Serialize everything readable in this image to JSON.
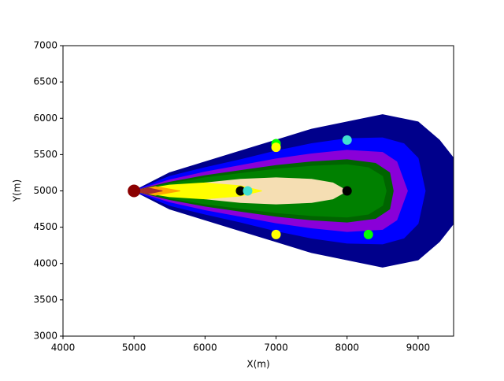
{
  "chart_data": {
    "type": "contour",
    "xlabel": "X(m)",
    "ylabel": "Y(m)",
    "xlim": [
      4000,
      9500
    ],
    "ylim": [
      3000,
      7000
    ],
    "xticks": [
      4000,
      5000,
      6000,
      7000,
      8000,
      9000
    ],
    "yticks": [
      3000,
      3500,
      4000,
      4500,
      5000,
      5500,
      6000,
      6500,
      7000
    ],
    "contours": [
      {
        "color": "#00008b",
        "x": [
          5000,
          5500,
          6000,
          6500,
          7000,
          7500,
          8000,
          8500,
          9000,
          9300,
          9500
        ],
        "upper": [
          5000,
          5250,
          5400,
          5550,
          5700,
          5850,
          5950,
          6050,
          5950,
          5700,
          5450
        ],
        "lower": [
          5000,
          4750,
          4600,
          4450,
          4300,
          4150,
          4050,
          3950,
          4050,
          4300,
          4550
        ]
      },
      {
        "color": "#0000ff",
        "x": [
          5000,
          5500,
          6000,
          6500,
          7000,
          7500,
          8000,
          8500,
          8800,
          9000,
          9100
        ],
        "upper": [
          5000,
          5200,
          5320,
          5430,
          5550,
          5650,
          5720,
          5730,
          5650,
          5450,
          5000
        ],
        "lower": [
          5000,
          4800,
          4680,
          4570,
          4450,
          4350,
          4280,
          4270,
          4350,
          4550,
          5000
        ]
      },
      {
        "color": "#8a00d8",
        "x": [
          5000,
          5500,
          6000,
          6500,
          7000,
          7500,
          8000,
          8500,
          8700,
          8850
        ],
        "upper": [
          5000,
          5150,
          5260,
          5350,
          5440,
          5510,
          5560,
          5530,
          5400,
          5000
        ],
        "lower": [
          5000,
          4850,
          4740,
          4650,
          4560,
          4490,
          4440,
          4470,
          4600,
          5000
        ]
      },
      {
        "color": "#006400",
        "x": [
          5000,
          5500,
          6000,
          6500,
          7000,
          7500,
          8000,
          8400,
          8600,
          8650
        ],
        "upper": [
          5000,
          5120,
          5210,
          5280,
          5350,
          5400,
          5430,
          5380,
          5250,
          5000
        ],
        "lower": [
          5000,
          4880,
          4790,
          4720,
          4650,
          4600,
          4570,
          4620,
          4750,
          5000
        ]
      },
      {
        "color": "#008000",
        "x": [
          5000,
          5500,
          6000,
          6500,
          7000,
          7500,
          8000,
          8300,
          8500,
          8550
        ],
        "upper": [
          5000,
          5100,
          5180,
          5240,
          5300,
          5340,
          5360,
          5320,
          5200,
          5000
        ],
        "lower": [
          5000,
          4900,
          4820,
          4760,
          4700,
          4660,
          4640,
          4680,
          4800,
          5000
        ]
      },
      {
        "color": "#f5deb3",
        "x": [
          5000,
          5500,
          6000,
          6500,
          7000,
          7500,
          7800,
          8000
        ],
        "upper": [
          5000,
          5060,
          5110,
          5160,
          5180,
          5160,
          5110,
          5000
        ],
        "lower": [
          5000,
          4940,
          4890,
          4840,
          4820,
          4840,
          4890,
          5000
        ]
      },
      {
        "color": "#ffff00",
        "x": [
          5000,
          5500,
          6000,
          6500,
          6800
        ],
        "upper": [
          5000,
          5080,
          5110,
          5070,
          5000
        ],
        "lower": [
          5000,
          4920,
          4890,
          4930,
          5000
        ]
      },
      {
        "color": "#ffa500",
        "x": [
          5000,
          5300,
          5650
        ],
        "upper": [
          5000,
          5060,
          5000
        ],
        "lower": [
          5000,
          4940,
          5000
        ]
      },
      {
        "color": "#a52a2a",
        "x": [
          5000,
          5200,
          5400
        ],
        "upper": [
          5000,
          5040,
          5000
        ],
        "lower": [
          5000,
          4960,
          5000
        ]
      }
    ],
    "series": [
      {
        "color": "#8b0000",
        "x": [
          5000
        ],
        "y": [
          5000
        ]
      },
      {
        "color": "#000000",
        "x": [
          6500,
          8000
        ],
        "y": [
          5000,
          5000
        ]
      },
      {
        "color": "#40e0d0",
        "x": [
          6600,
          8000
        ],
        "y": [
          5000,
          5700
        ]
      },
      {
        "color": "#00ff00",
        "x": [
          7000,
          8300
        ],
        "y": [
          5650,
          4400
        ]
      },
      {
        "color": "#ffff00",
        "x": [
          7000,
          7000
        ],
        "y": [
          5600,
          4400
        ]
      }
    ]
  }
}
